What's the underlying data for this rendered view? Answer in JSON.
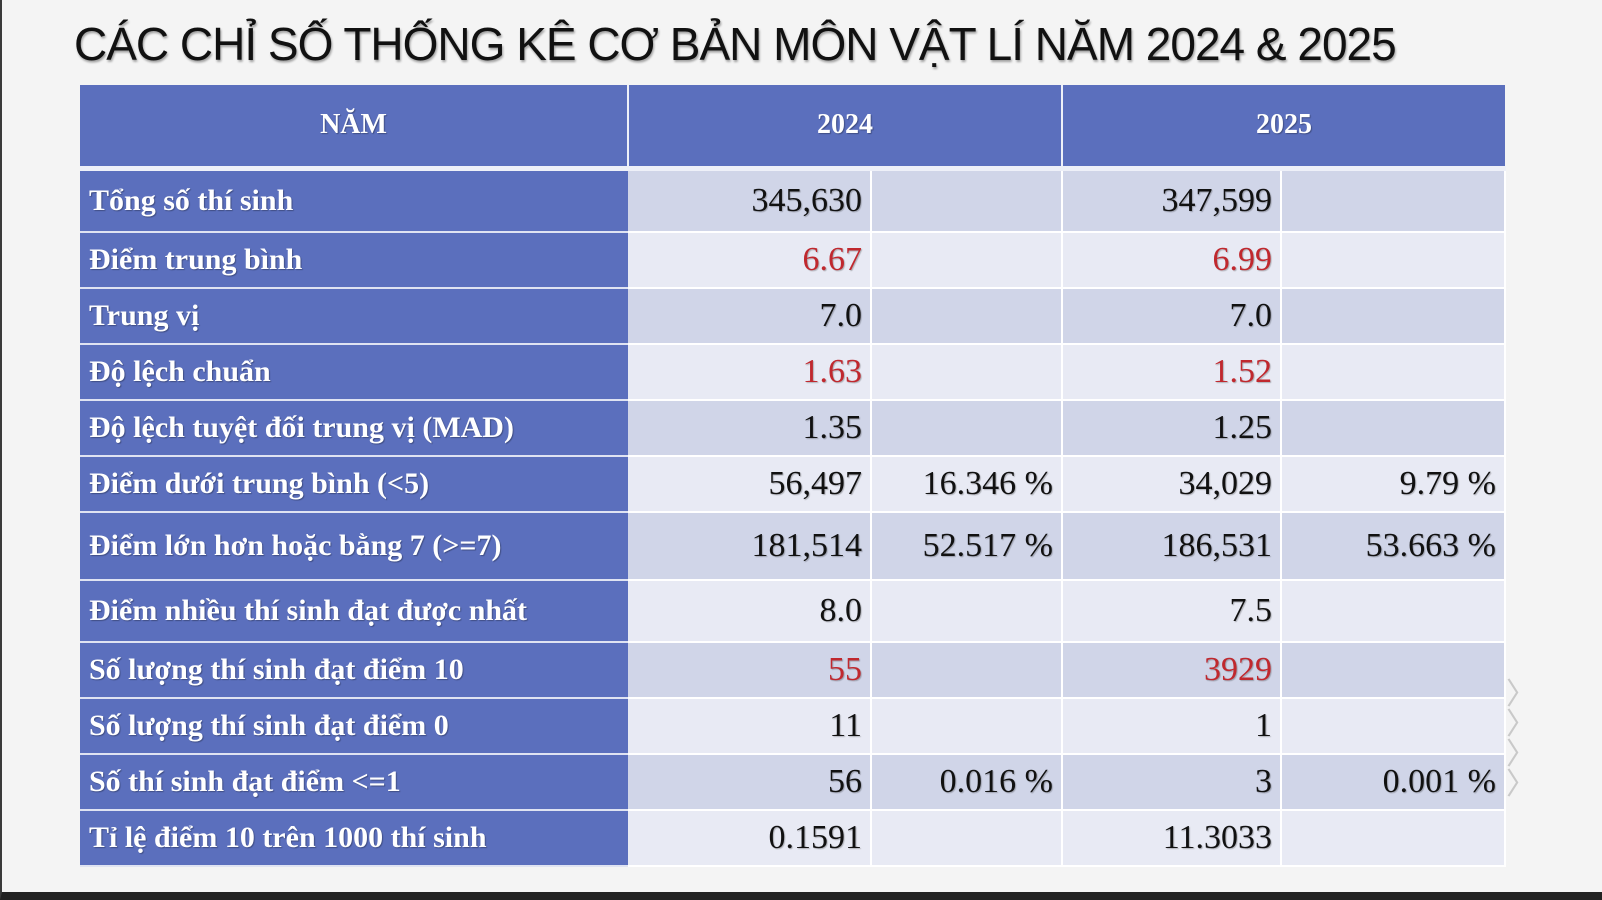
{
  "title": "CÁC CHỈ SỐ THỐNG KÊ CƠ BẢN MÔN VẬT LÍ NĂM 2024 & 2025",
  "header": {
    "col_label": "NĂM",
    "year1": "2024",
    "year2": "2025"
  },
  "colors": {
    "header_bg": "#5b6fbd",
    "row_odd": "#d0d5e8",
    "row_even": "#e8eaf4",
    "highlight_red": "#c0282e"
  },
  "rows": [
    {
      "label": "Tổng số thí sinh",
      "v2024": "345,630",
      "p2024": "",
      "v2025": "347,599",
      "p2025": "",
      "red": false
    },
    {
      "label": "Điểm trung bình",
      "v2024": "6.67",
      "p2024": "",
      "v2025": "6.99",
      "p2025": "",
      "red": true
    },
    {
      "label": "Trung vị",
      "v2024": "7.0",
      "p2024": "",
      "v2025": "7.0",
      "p2025": "",
      "red": false
    },
    {
      "label": "Độ lệch chuẩn",
      "v2024": "1.63",
      "p2024": "",
      "v2025": "1.52",
      "p2025": "",
      "red": true
    },
    {
      "label": "Độ lệch tuyệt đối trung vị (MAD)",
      "v2024": "1.35",
      "p2024": "",
      "v2025": "1.25",
      "p2025": "",
      "red": false
    },
    {
      "label": "Điểm dưới trung bình (<5)",
      "v2024": "56,497",
      "p2024": "16.346 %",
      "v2025": "34,029",
      "p2025": "9.79 %",
      "red": false
    },
    {
      "label": "Điểm lớn hơn hoặc bằng 7 (>=7)",
      "v2024": "181,514",
      "p2024": "52.517 %",
      "v2025": "186,531",
      "p2025": "53.663 %",
      "red": false
    },
    {
      "label": "Điểm nhiều thí sinh đạt được nhất",
      "v2024": "8.0",
      "p2024": "",
      "v2025": "7.5",
      "p2025": "",
      "red": false
    },
    {
      "label": "Số lượng thí sinh đạt điểm 10",
      "v2024": "55",
      "p2024": "",
      "v2025": "3929",
      "p2025": "",
      "red": true
    },
    {
      "label": "Số lượng thí sinh đạt điểm 0",
      "v2024": "11",
      "p2024": "",
      "v2025": "1",
      "p2025": "",
      "red": false
    },
    {
      "label": "Số thí sinh đạt điểm <=1",
      "v2024": "56",
      "p2024": "0.016 %",
      "v2025": "3",
      "p2025": "0.001 %",
      "red": false
    },
    {
      "label": "Tỉ lệ điểm 10 trên 1000 thí sinh",
      "v2024": "0.1591",
      "p2024": "",
      "v2025": "11.3033",
      "p2025": "",
      "red": false
    }
  ]
}
